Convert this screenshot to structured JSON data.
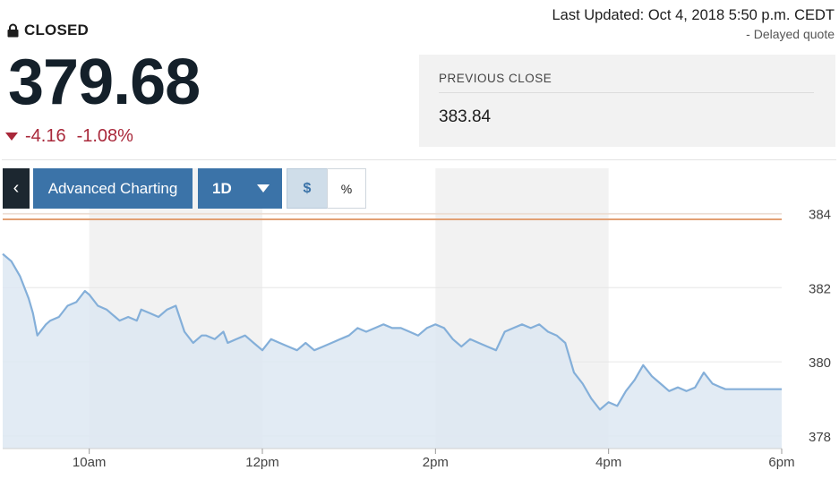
{
  "status": {
    "label": "CLOSED",
    "icon": "lock-icon"
  },
  "updated": {
    "text": "Last Updated: Oct 4, 2018 5:50 p.m. CEDT",
    "delayed": "-  Delayed quote"
  },
  "quote": {
    "price": "379.68",
    "change": "-4.16",
    "change_pct": "-1.08%",
    "direction": "down"
  },
  "previous_close": {
    "label": "PREVIOUS CLOSE",
    "value": "383.84"
  },
  "toolbar": {
    "back_label": "‹",
    "advanced_label": "Advanced Charting",
    "period_label": "1D",
    "dollar_label": "$",
    "percent_label": "%"
  },
  "colors": {
    "line": "#84afd9",
    "area": "#dde8f2",
    "prev_close_line": "#e2a074",
    "down": "#a9283a",
    "accent": "#3b73a8"
  },
  "chart_data": {
    "type": "area",
    "x_tick_labels": [
      "10am",
      "12pm",
      "2pm",
      "4pm",
      "6pm"
    ],
    "y_tick_labels": [
      "384",
      "382",
      "380",
      "378"
    ],
    "ylim": [
      377.95,
      384.3
    ],
    "xlim_hours": [
      9.0,
      18.0
    ],
    "previous_close": 383.84,
    "shaded_hour_bands": [
      [
        10,
        12
      ],
      [
        14,
        16
      ]
    ],
    "series": [
      {
        "x": [
          9.0,
          9.1,
          9.2,
          9.3,
          9.35,
          9.4,
          9.5,
          9.55,
          9.65,
          9.75,
          9.85,
          9.95,
          10.0,
          10.1,
          10.2,
          10.3,
          10.35,
          10.45,
          10.55,
          10.6,
          10.7,
          10.8,
          10.9,
          11.0,
          11.1,
          11.2,
          11.3,
          11.35,
          11.45,
          11.55,
          11.6,
          11.7,
          11.8,
          11.9,
          12.0,
          12.1,
          12.2,
          12.3,
          12.4,
          12.5,
          12.6,
          12.7,
          12.8,
          12.9,
          13.0,
          13.1,
          13.2,
          13.3,
          13.4,
          13.5,
          13.6,
          13.7,
          13.8,
          13.9,
          14.0,
          14.1,
          14.2,
          14.3,
          14.4,
          14.5,
          14.6,
          14.7,
          14.8,
          14.9,
          15.0,
          15.1,
          15.2,
          15.3,
          15.4,
          15.5,
          15.6,
          15.7,
          15.8,
          15.9,
          16.0,
          16.1,
          16.2,
          16.3,
          16.4,
          16.5,
          16.6,
          16.7,
          16.8,
          16.9,
          17.0,
          17.1,
          17.2,
          17.3,
          17.35,
          17.4,
          17.5,
          17.7,
          17.9,
          18.0
        ],
        "values": [
          383.2,
          383.0,
          382.6,
          382.0,
          381.6,
          381.0,
          381.3,
          381.4,
          381.5,
          381.8,
          381.9,
          382.2,
          382.1,
          381.8,
          381.7,
          381.5,
          381.4,
          381.5,
          381.4,
          381.7,
          381.6,
          381.5,
          381.7,
          381.8,
          381.1,
          380.8,
          381.0,
          381.0,
          380.9,
          381.1,
          380.8,
          380.9,
          381.0,
          380.8,
          380.6,
          380.9,
          380.8,
          380.7,
          380.6,
          380.8,
          380.6,
          380.7,
          380.8,
          380.9,
          381.0,
          381.2,
          381.1,
          381.2,
          381.3,
          381.2,
          381.2,
          381.1,
          381.0,
          381.2,
          381.3,
          381.2,
          380.9,
          380.7,
          380.9,
          380.8,
          380.7,
          380.6,
          381.1,
          381.2,
          381.3,
          381.2,
          381.3,
          381.1,
          381.0,
          380.8,
          380.0,
          379.7,
          379.3,
          379.0,
          379.2,
          379.1,
          379.5,
          379.8,
          380.2,
          379.9,
          379.7,
          379.5,
          379.6,
          379.5,
          379.6,
          380.0,
          379.7,
          379.6,
          379.55,
          379.55,
          379.55,
          379.55,
          379.55,
          379.55
        ]
      }
    ]
  }
}
